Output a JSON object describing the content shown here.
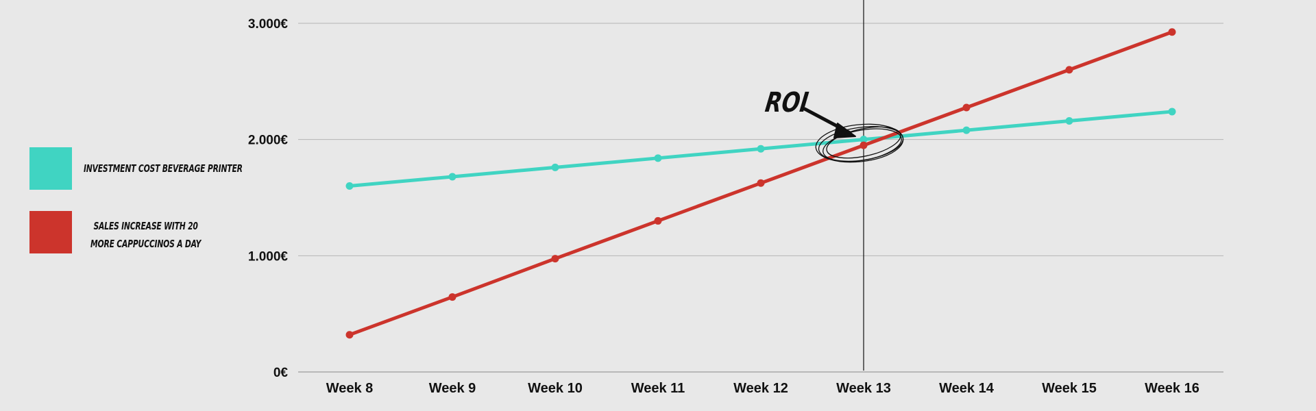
{
  "colors": {
    "background": "#e8e8e8",
    "investment": "#40d4c2",
    "sales": "#cc342c",
    "grid": "#b5b5b5",
    "axis": "#888888"
  },
  "legend": {
    "items": [
      {
        "label": "INVESTMENT COST BEVERAGE PRINTER",
        "color": "#40d4c2"
      },
      {
        "label_line1": "SALES INCREASE WITH 20",
        "label_line2": "MORE CAPPUCCINOS A DAY",
        "color": "#cc342c"
      }
    ]
  },
  "annotation": {
    "text": "ROI",
    "at_category": "Week 13"
  },
  "chart_data": {
    "type": "line",
    "title": "",
    "xlabel": "",
    "ylabel": "",
    "categories": [
      "Week 8",
      "Week 9",
      "Week 10",
      "Week 11",
      "Week 12",
      "Week 13",
      "Week 14",
      "Week 15",
      "Week 16"
    ],
    "y_ticks": [
      0,
      1000,
      2000,
      3000
    ],
    "y_tick_labels": [
      "0€",
      "1.000€",
      "2.000€",
      "3.000€"
    ],
    "ylim": [
      0,
      3000
    ],
    "grid": true,
    "legend_position": "left",
    "series": [
      {
        "label": "INVESTMENT COST BEVERAGE PRINTER",
        "color": "#40d4c2",
        "values": [
          1600,
          1680,
          1760,
          1840,
          1920,
          2000,
          2080,
          2160,
          2240
        ]
      },
      {
        "label": "SALES INCREASE WITH 20 MORE CAPPUCCINOS A DAY",
        "color": "#cc342c",
        "values": [
          320,
          645,
          975,
          1300,
          1625,
          1950,
          2275,
          2600,
          2925
        ]
      }
    ]
  }
}
